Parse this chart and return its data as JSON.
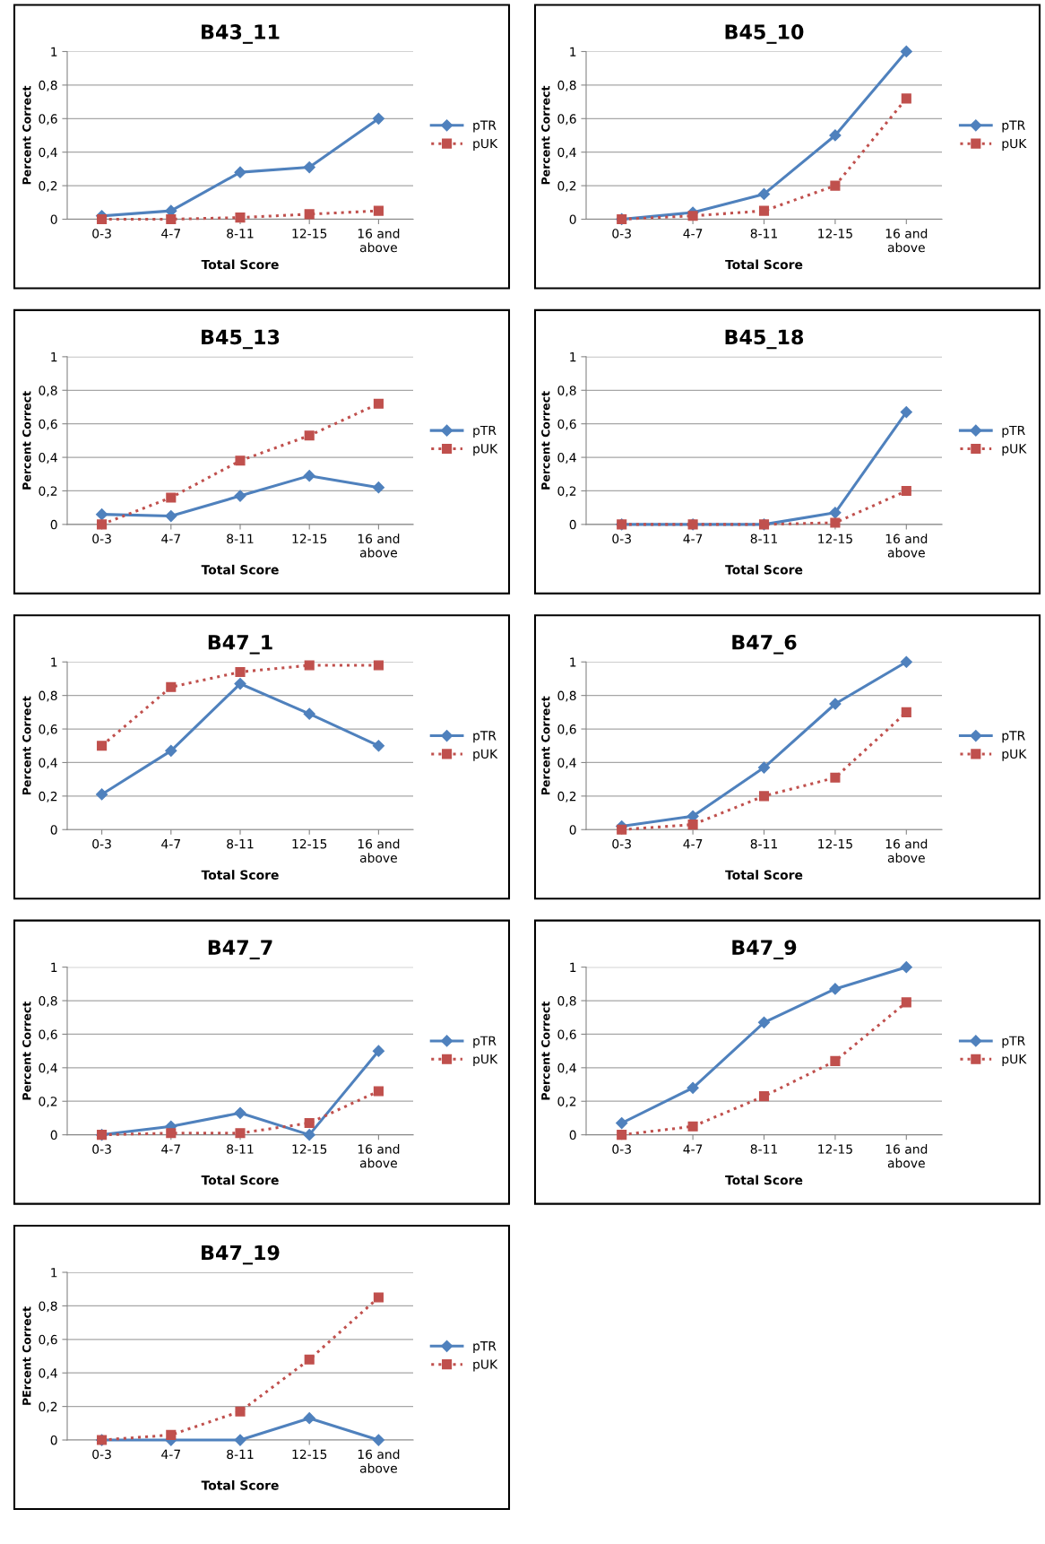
{
  "chart_data": [
    {
      "type": "line",
      "title": "B43_11",
      "xlabel": "Total Score",
      "ylabel": "Percent Correct",
      "categories": [
        "0-3",
        "4-7",
        "8-11",
        "12-15",
        "16 and\nabove"
      ],
      "ylim": [
        0,
        1
      ],
      "yticks": [
        0,
        {
          "value": 0.2,
          "label": "0,2"
        },
        {
          "value": 0.4,
          "label": "0,4"
        },
        {
          "value": 0.6,
          "label": "0,6"
        },
        {
          "value": 0.8,
          "label": "0,8"
        },
        1
      ],
      "grid": "y",
      "legend": "right",
      "series": [
        {
          "name": "pTR",
          "color": "#4f81bd",
          "marker": "diamond",
          "line_style": "solid",
          "values": [
            0.02,
            0.05,
            0.28,
            0.31,
            0.6
          ]
        },
        {
          "name": "pUK",
          "color": "#c0504d",
          "marker": "square",
          "line_style": "dotted",
          "values": [
            0,
            0,
            0.01,
            0.03,
            0.05
          ]
        }
      ]
    },
    {
      "type": "line",
      "title": "B45_10",
      "xlabel": "Total Score",
      "ylabel": "Percent Correct",
      "categories": [
        "0-3",
        "4-7",
        "8-11",
        "12-15",
        "16 and\nabove"
      ],
      "ylim": [
        0,
        1
      ],
      "yticks": [
        0,
        {
          "value": 0.2,
          "label": "0,2"
        },
        {
          "value": 0.4,
          "label": "0,4"
        },
        {
          "value": 0.6,
          "label": "0,6"
        },
        {
          "value": 0.8,
          "label": "0,8"
        },
        1
      ],
      "grid": "y",
      "legend": "right",
      "series": [
        {
          "name": "pTR",
          "color": "#4f81bd",
          "marker": "diamond",
          "line_style": "solid",
          "values": [
            0,
            0.04,
            0.15,
            0.5,
            1.0
          ]
        },
        {
          "name": "pUK",
          "color": "#c0504d",
          "marker": "square",
          "line_style": "dotted",
          "values": [
            0,
            0.02,
            0.05,
            0.2,
            0.72
          ]
        }
      ]
    },
    {
      "type": "line",
      "title": "B45_13",
      "xlabel": "Total Score",
      "ylabel": "Percent Correct",
      "categories": [
        "0-3",
        "4-7",
        "8-11",
        "12-15",
        "16 and\nabove"
      ],
      "ylim": [
        0,
        1
      ],
      "yticks": [
        0,
        {
          "value": 0.2,
          "label": "0,2"
        },
        {
          "value": 0.4,
          "label": "0,4"
        },
        {
          "value": 0.6,
          "label": "0,6"
        },
        {
          "value": 0.8,
          "label": "0,8"
        },
        1
      ],
      "grid": "y",
      "legend": "right",
      "series": [
        {
          "name": "pTR",
          "color": "#4f81bd",
          "marker": "diamond",
          "line_style": "solid",
          "values": [
            0.06,
            0.05,
            0.17,
            0.29,
            0.22
          ]
        },
        {
          "name": "pUK",
          "color": "#c0504d",
          "marker": "square",
          "line_style": "dotted",
          "values": [
            0,
            0.16,
            0.38,
            0.53,
            0.72
          ]
        }
      ]
    },
    {
      "type": "line",
      "title": "B45_18",
      "xlabel": "Total Score",
      "ylabel": "Percent Correct",
      "categories": [
        "0-3",
        "4-7",
        "8-11",
        "12-15",
        "16 and\nabove"
      ],
      "ylim": [
        0,
        1
      ],
      "yticks": [
        0,
        {
          "value": 0.2,
          "label": "0,2"
        },
        {
          "value": 0.4,
          "label": "0,4"
        },
        {
          "value": 0.6,
          "label": "0,6"
        },
        {
          "value": 0.8,
          "label": "0,8"
        },
        1
      ],
      "grid": "y",
      "legend": "right",
      "series": [
        {
          "name": "pTR",
          "color": "#4f81bd",
          "marker": "diamond",
          "line_style": "solid",
          "values": [
            0,
            0,
            0,
            0.07,
            0.67
          ]
        },
        {
          "name": "pUK",
          "color": "#c0504d",
          "marker": "square",
          "line_style": "dotted",
          "values": [
            0,
            0,
            0,
            0.01,
            0.2
          ]
        }
      ]
    },
    {
      "type": "line",
      "title": "B47_1",
      "xlabel": "Total Score",
      "ylabel": "Percent Correct",
      "categories": [
        "0-3",
        "4-7",
        "8-11",
        "12-15",
        "16 and\nabove"
      ],
      "ylim": [
        0,
        1
      ],
      "yticks": [
        0,
        {
          "value": 0.2,
          "label": "0,2"
        },
        {
          "value": 0.4,
          "label": "0,4"
        },
        {
          "value": 0.6,
          "label": "0,6"
        },
        {
          "value": 0.8,
          "label": "0,8"
        },
        1
      ],
      "grid": "y",
      "legend": "right",
      "series": [
        {
          "name": "pTR",
          "color": "#4f81bd",
          "marker": "diamond",
          "line_style": "solid",
          "values": [
            0.21,
            0.47,
            0.87,
            0.69,
            0.5
          ]
        },
        {
          "name": "pUK",
          "color": "#c0504d",
          "marker": "square",
          "line_style": "dotted",
          "values": [
            0.5,
            0.85,
            0.94,
            0.98,
            0.98
          ]
        }
      ]
    },
    {
      "type": "line",
      "title": "B47_6",
      "xlabel": "Total Score",
      "ylabel": "Percent Correct",
      "categories": [
        "0-3",
        "4-7",
        "8-11",
        "12-15",
        "16 and\nabove"
      ],
      "ylim": [
        0,
        1
      ],
      "yticks": [
        0,
        {
          "value": 0.2,
          "label": "0,2"
        },
        {
          "value": 0.4,
          "label": "0,4"
        },
        {
          "value": 0.6,
          "label": "0,6"
        },
        {
          "value": 0.8,
          "label": "0,8"
        },
        1
      ],
      "grid": "y",
      "legend": "right",
      "series": [
        {
          "name": "pTR",
          "color": "#4f81bd",
          "marker": "diamond",
          "line_style": "solid",
          "values": [
            0.02,
            0.08,
            0.37,
            0.75,
            1.0
          ]
        },
        {
          "name": "pUK",
          "color": "#c0504d",
          "marker": "square",
          "line_style": "dotted",
          "values": [
            0,
            0.03,
            0.2,
            0.31,
            0.7
          ]
        }
      ]
    },
    {
      "type": "line",
      "title": "B47_7",
      "xlabel": "Total Score",
      "ylabel": "Percent Correct",
      "categories": [
        "0-3",
        "4-7",
        "8-11",
        "12-15",
        "16 and\nabove"
      ],
      "ylim": [
        0,
        1
      ],
      "yticks": [
        0,
        {
          "value": 0.2,
          "label": "0,2"
        },
        {
          "value": 0.4,
          "label": "0,4"
        },
        {
          "value": 0.6,
          "label": "0,6"
        },
        {
          "value": 0.8,
          "label": "0,8"
        },
        1
      ],
      "grid": "y",
      "legend": "right",
      "series": [
        {
          "name": "pTR",
          "color": "#4f81bd",
          "marker": "diamond",
          "line_style": "solid",
          "values": [
            0,
            0.05,
            0.13,
            0,
            0.5
          ]
        },
        {
          "name": "pUK",
          "color": "#c0504d",
          "marker": "square",
          "line_style": "dotted",
          "values": [
            0,
            0.01,
            0.01,
            0.07,
            0.26
          ]
        }
      ]
    },
    {
      "type": "line",
      "title": "B47_9",
      "xlabel": "Total Score",
      "ylabel": "Percent Correct",
      "categories": [
        "0-3",
        "4-7",
        "8-11",
        "12-15",
        "16 and\nabove"
      ],
      "ylim": [
        0,
        1
      ],
      "yticks": [
        0,
        {
          "value": 0.2,
          "label": "0,2"
        },
        {
          "value": 0.4,
          "label": "0,4"
        },
        {
          "value": 0.6,
          "label": "0,6"
        },
        {
          "value": 0.8,
          "label": "0,8"
        },
        1
      ],
      "grid": "y",
      "legend": "right",
      "series": [
        {
          "name": "pTR",
          "color": "#4f81bd",
          "marker": "diamond",
          "line_style": "solid",
          "values": [
            0.07,
            0.28,
            0.67,
            0.87,
            1.0
          ]
        },
        {
          "name": "pUK",
          "color": "#c0504d",
          "marker": "square",
          "line_style": "dotted",
          "values": [
            0,
            0.05,
            0.23,
            0.44,
            0.79
          ]
        }
      ]
    },
    {
      "type": "line",
      "title": "B47_19",
      "xlabel": "Total Score",
      "ylabel": "PErcent Correct",
      "categories": [
        "0-3",
        "4-7",
        "8-11",
        "12-15",
        "16 and\nabove"
      ],
      "ylim": [
        0,
        1
      ],
      "yticks": [
        0,
        {
          "value": 0.2,
          "label": "0,2"
        },
        {
          "value": 0.4,
          "label": "0,4"
        },
        {
          "value": 0.6,
          "label": "0,6"
        },
        {
          "value": 0.8,
          "label": "0,8"
        },
        1
      ],
      "grid": "y",
      "legend": "right",
      "series": [
        {
          "name": "pTR",
          "color": "#4f81bd",
          "marker": "diamond",
          "line_style": "solid",
          "values": [
            0,
            0,
            0,
            0.13,
            0
          ]
        },
        {
          "name": "pUK",
          "color": "#c0504d",
          "marker": "square",
          "line_style": "dotted",
          "values": [
            0,
            0.03,
            0.17,
            0.48,
            0.85
          ]
        }
      ]
    }
  ]
}
